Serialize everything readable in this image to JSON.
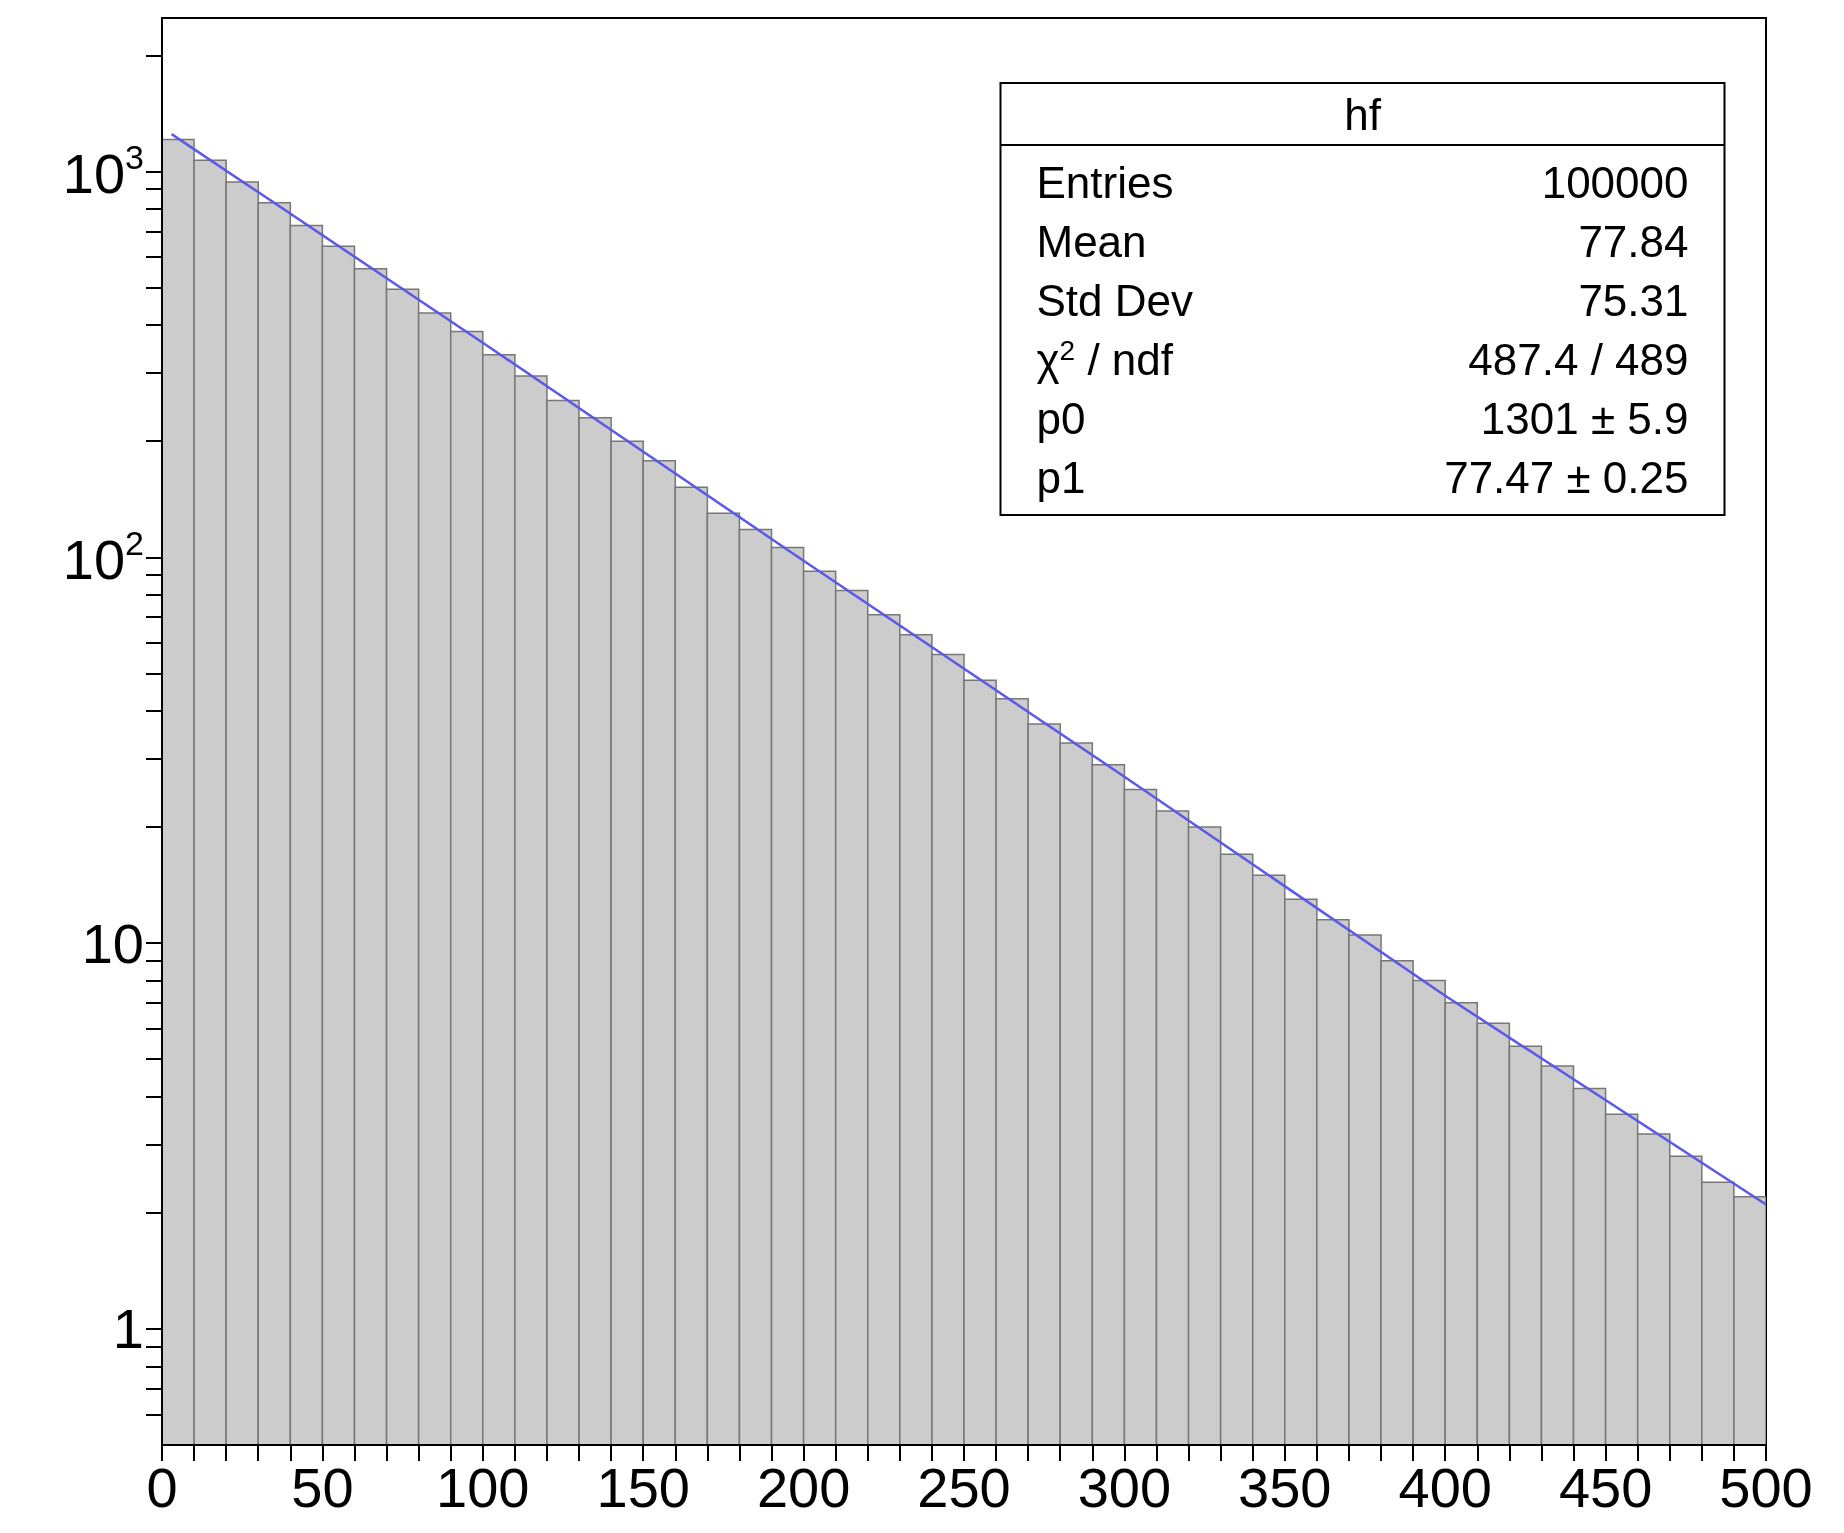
{
  "chart_data": {
    "type": "histogram",
    "bins": [
      0,
      10,
      20,
      30,
      40,
      50,
      60,
      70,
      80,
      90,
      100,
      110,
      120,
      130,
      140,
      150,
      160,
      170,
      180,
      190,
      200,
      210,
      220,
      230,
      240,
      250,
      260,
      270,
      280,
      290,
      300,
      310,
      320,
      330,
      340,
      350,
      360,
      370,
      380,
      390,
      400,
      410,
      420,
      430,
      440,
      450,
      460,
      470,
      480,
      490,
      500
    ],
    "values": [
      1210,
      1070,
      940,
      830,
      725,
      640,
      560,
      495,
      430,
      385,
      335,
      295,
      255,
      230,
      200,
      178,
      152,
      130,
      118,
      106,
      92,
      82,
      71,
      63,
      56,
      48,
      43,
      37,
      33,
      29,
      25,
      22,
      20,
      17,
      15,
      13,
      11.5,
      10.5,
      9,
      8,
      7,
      6.2,
      5.4,
      4.8,
      4.2,
      3.6,
      3.2,
      2.8,
      2.4,
      2.2
    ],
    "color": "#cccccc",
    "series": [
      {
        "type": "line",
        "color": "#5a5ae6",
        "x": [
          3,
          100,
          200,
          300,
          400,
          500
        ],
        "values": [
          1250,
          360,
          98,
          27,
          7.3,
          2.1
        ],
        "marker": "none"
      }
    ],
    "log": "y",
    "xlim": [
      0,
      500
    ],
    "xticks": [
      0,
      {
        "value": 10,
        "label": null
      },
      {
        "value": 20,
        "label": null
      },
      {
        "value": 30,
        "label": null
      },
      {
        "value": 40,
        "label": null
      },
      50,
      {
        "value": 60,
        "label": null
      },
      {
        "value": 70,
        "label": null
      },
      {
        "value": 80,
        "label": null
      },
      {
        "value": 90,
        "label": null
      },
      100,
      {
        "value": 110,
        "label": null
      },
      {
        "value": 120,
        "label": null
      },
      {
        "value": 130,
        "label": null
      },
      {
        "value": 140,
        "label": null
      },
      150,
      {
        "value": 160,
        "label": null
      },
      {
        "value": 170,
        "label": null
      },
      {
        "value": 180,
        "label": null
      },
      {
        "value": 190,
        "label": null
      },
      200,
      {
        "value": 210,
        "label": null
      },
      {
        "value": 220,
        "label": null
      },
      {
        "value": 230,
        "label": null
      },
      {
        "value": 240,
        "label": null
      },
      250,
      {
        "value": 260,
        "label": null
      },
      {
        "value": 270,
        "label": null
      },
      {
        "value": 280,
        "label": null
      },
      {
        "value": 290,
        "label": null
      },
      300,
      {
        "value": 310,
        "label": null
      },
      {
        "value": 320,
        "label": null
      },
      {
        "value": 330,
        "label": null
      },
      {
        "value": 340,
        "label": null
      },
      350,
      {
        "value": 360,
        "label": null
      },
      {
        "value": 370,
        "label": null
      },
      {
        "value": 380,
        "label": null
      },
      {
        "value": 390,
        "label": null
      },
      400,
      {
        "value": 410,
        "label": null
      },
      {
        "value": 420,
        "label": null
      },
      {
        "value": 430,
        "label": null
      },
      {
        "value": 440,
        "label": null
      },
      450,
      {
        "value": 460,
        "label": null
      },
      {
        "value": 470,
        "label": null
      },
      {
        "value": 480,
        "label": null
      },
      {
        "value": 490,
        "label": null
      },
      500
    ],
    "ylim": [
      0.5,
      2500
    ],
    "yticks": [
      {
        "value": 0.6,
        "label": null
      },
      {
        "value": 0.7,
        "label": null
      },
      {
        "value": 0.8,
        "label": null
      },
      {
        "value": 0.9,
        "label": null
      },
      1,
      {
        "value": 2,
        "label": null
      },
      {
        "value": 3,
        "label": null
      },
      {
        "value": 4,
        "label": null
      },
      {
        "value": 5,
        "label": null
      },
      {
        "value": 6,
        "label": null
      },
      {
        "value": 7,
        "label": null
      },
      {
        "value": 8,
        "label": null
      },
      {
        "value": 9,
        "label": null
      },
      10,
      {
        "value": 20,
        "label": null
      },
      {
        "value": 30,
        "label": null
      },
      {
        "value": 40,
        "label": null
      },
      {
        "value": 50,
        "label": null
      },
      {
        "value": 60,
        "label": null
      },
      {
        "value": 70,
        "label": null
      },
      {
        "value": 80,
        "label": null
      },
      {
        "value": 90,
        "label": null
      },
      {
        "value": 100,
        "label": "10$^{2}$"
      },
      {
        "value": 200,
        "label": null
      },
      {
        "value": 300,
        "label": null
      },
      {
        "value": 400,
        "label": null
      },
      {
        "value": 500,
        "label": null
      },
      {
        "value": 600,
        "label": null
      },
      {
        "value": 700,
        "label": null
      },
      {
        "value": 800,
        "label": null
      },
      {
        "value": 900,
        "label": null
      },
      {
        "value": 1000,
        "label": "10$^{3}$"
      },
      {
        "value": 2000,
        "label": null
      }
    ],
    "grid": false,
    "annotations": [
      "hf",
      "Entries",
      "100000",
      "Mean",
      "77.84",
      "Std Dev",
      "75.31",
      "χ$^{2}$ / ndf",
      "487.4 / 489",
      "p0",
      "1301 ± 5.9",
      "p1",
      "77.47 ± 0.25"
    ]
  }
}
